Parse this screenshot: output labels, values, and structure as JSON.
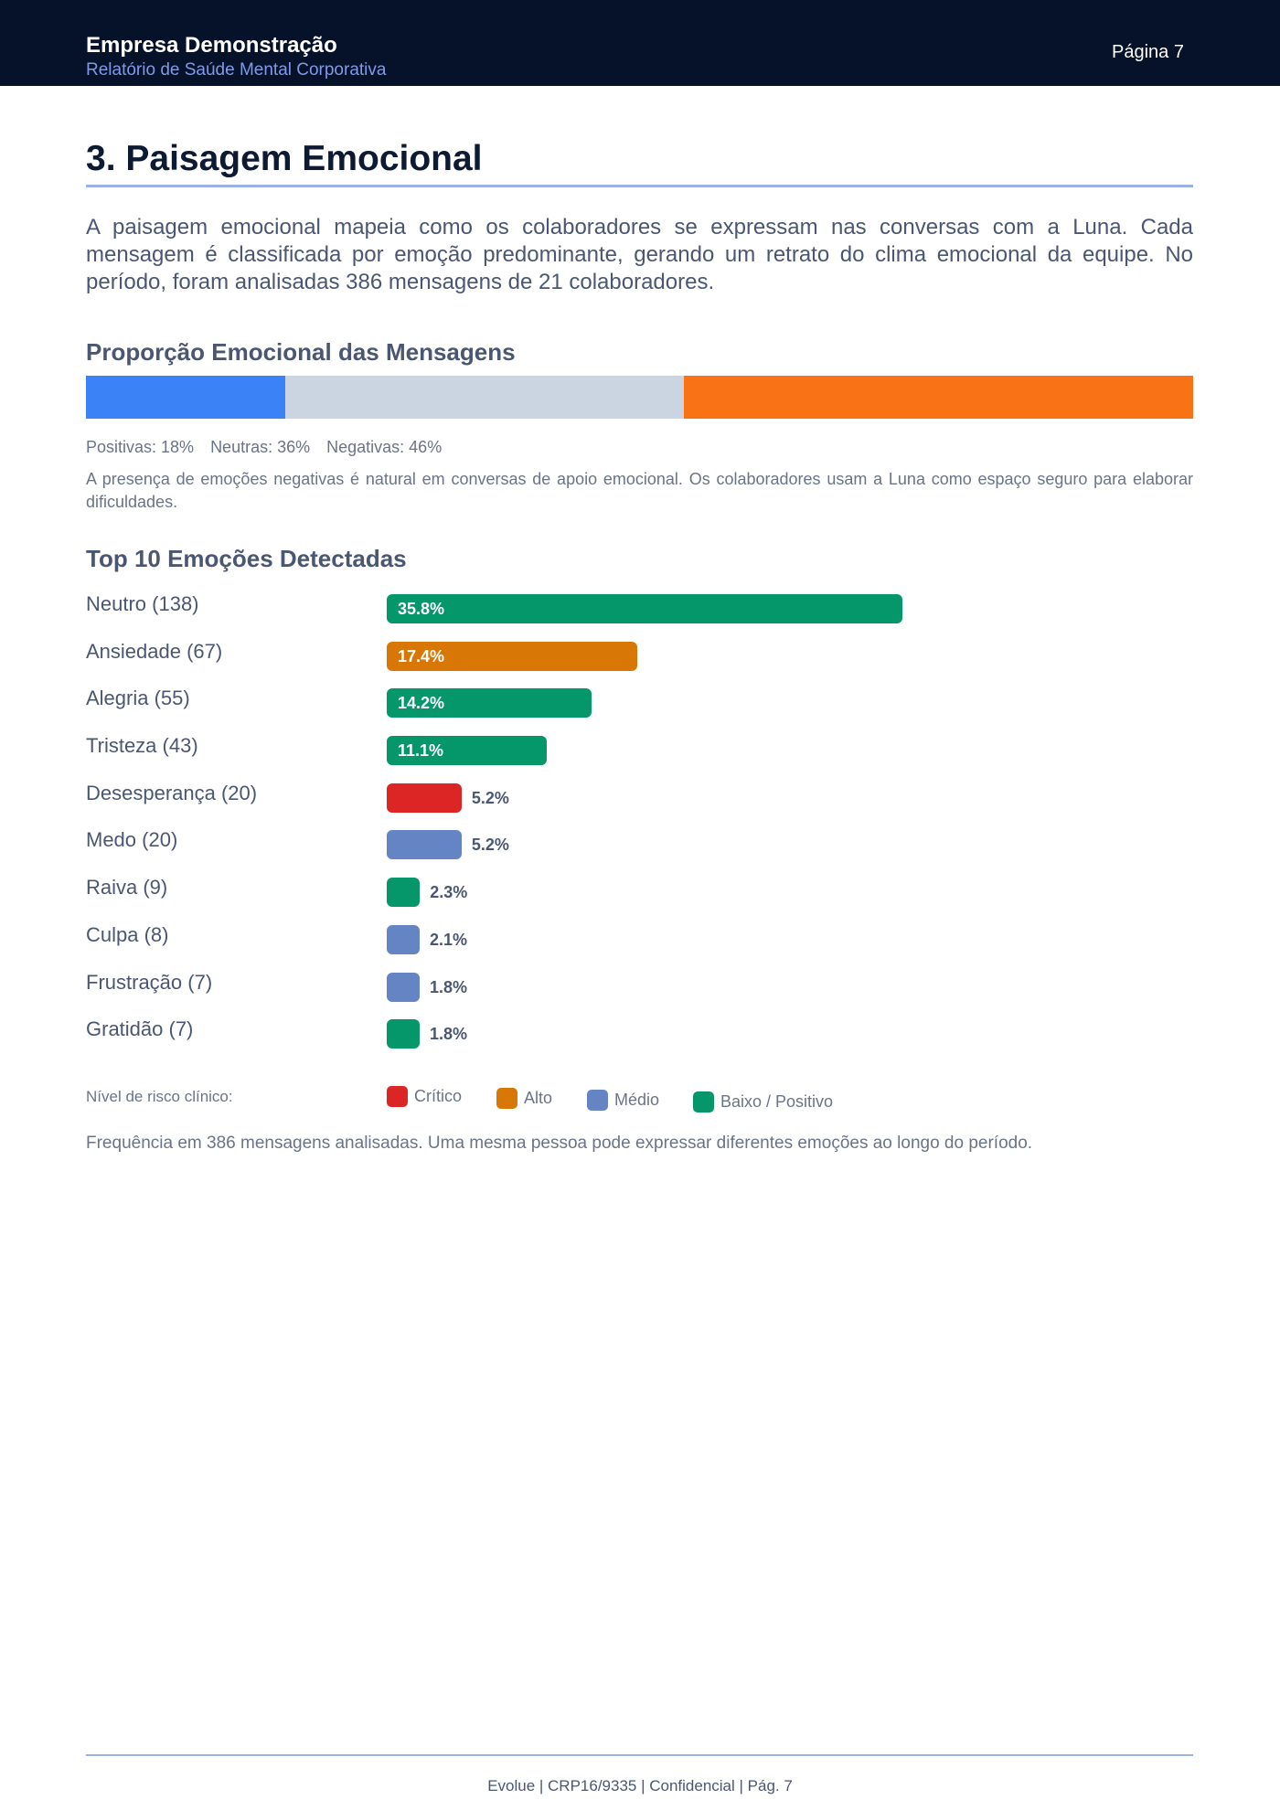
{
  "header": {
    "company": "Empresa Demonstração",
    "subtitle": "Relatório de Saúde Mental Corporativa",
    "page_label": "Página 7"
  },
  "section": {
    "title": "3. Paisagem Emocional",
    "intro": "A paisagem emocional mapeia como os colaboradores se expressam nas conversas com a Luna. Cada mensagem é classificada por emoção predominante, gerando um retrato do clima emocional da equipe. No período, foram analisadas 386 mensagens de 21 colaboradores."
  },
  "proportion": {
    "heading": "Proporção Emocional das Mensagens",
    "segments": [
      {
        "key": "positivas",
        "label": "Positivas: 18%",
        "value": 18,
        "color": "#3b82f6"
      },
      {
        "key": "neutras",
        "label": "Neutras: 36%",
        "value": 36,
        "color": "#cbd5e1"
      },
      {
        "key": "negativas",
        "label": "Negativas: 46%",
        "value": 46,
        "color": "#f97316"
      }
    ],
    "note": "A presença de emoções negativas é natural em conversas de apoio emocional. Os colaboradores usam a Luna como espaço seguro para elaborar dificuldades."
  },
  "chart_data": {
    "type": "bar",
    "orientation": "horizontal",
    "title": "Top 10 Emoções Detectadas",
    "categories": [
      "Neutro (138)",
      "Ansiedade (67)",
      "Alegria (55)",
      "Tristeza (43)",
      "Desesperança (20)",
      "Medo (20)",
      "Raiva (9)",
      "Culpa (8)",
      "Frustração (7)",
      "Gratidão (7)"
    ],
    "values": [
      35.8,
      17.4,
      14.2,
      11.1,
      5.2,
      5.2,
      2.3,
      2.1,
      1.8,
      1.8
    ],
    "value_labels": [
      "35.8%",
      "17.4%",
      "14.2%",
      "11.1%",
      "5.2%",
      "5.2%",
      "2.3%",
      "2.1%",
      "1.8%",
      "1.8%"
    ],
    "risk_levels": [
      "baixo",
      "alto",
      "baixo",
      "baixo",
      "critico",
      "medio",
      "baixo",
      "medio",
      "medio",
      "baixo"
    ],
    "xlim": [
      0,
      56
    ],
    "grid": false,
    "legend": "bottom"
  },
  "risk_legend": {
    "label": "Nível de risco clínico:",
    "items": [
      {
        "key": "critico",
        "label": "Crítico",
        "color": "#dc2626"
      },
      {
        "key": "alto",
        "label": "Alto",
        "color": "#d97706"
      },
      {
        "key": "medio",
        "label": "Médio",
        "color": "#6584c4"
      },
      {
        "key": "baixo",
        "label": "Baixo / Positivo",
        "color": "#059669"
      }
    ]
  },
  "footnote": "Frequência em 386 mensagens analisadas. Uma mesma pessoa pode expressar diferentes emoções ao longo do período.",
  "footer": "Evolue | CRP16/9335 | Confidencial | Pág. 7"
}
